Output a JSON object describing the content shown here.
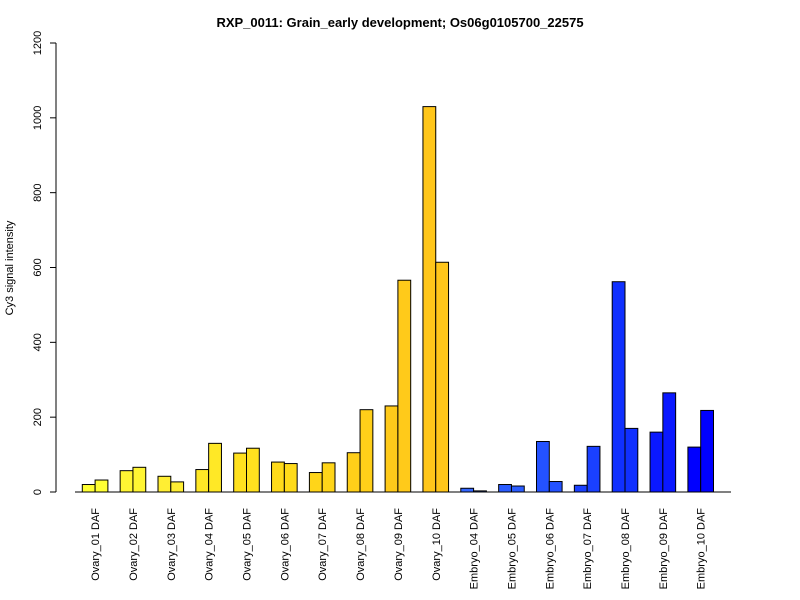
{
  "chart_data": {
    "type": "bar",
    "title": "RXP_0011: Grain_early development; Os06g0105700_22575",
    "xlabel": "",
    "ylabel": "Cy3 signal intensity",
    "ylim": [
      0,
      1200
    ],
    "yticks": [
      0,
      200,
      400,
      600,
      800,
      1000,
      1200
    ],
    "categories": [
      "Ovary_01 DAF",
      "Ovary_02 DAF",
      "Ovary_03 DAF",
      "Ovary_04 DAF",
      "Ovary_05 DAF",
      "Ovary_06 DAF",
      "Ovary_07 DAF",
      "Ovary_08 DAF",
      "Ovary_09 DAF",
      "Ovary_10 DAF",
      "Embryo_04 DAF",
      "Embryo_05 DAF",
      "Embryo_06 DAF",
      "Embryo_07 DAF",
      "Embryo_08 DAF",
      "Embryo_09 DAF",
      "Embryo_10 DAF"
    ],
    "series": [
      {
        "values": [
          20,
          57,
          42,
          60,
          104,
          80,
          52,
          105,
          230,
          1030,
          10,
          20,
          135,
          18,
          562,
          160,
          120
        ]
      },
      {
        "values": [
          32,
          66,
          27,
          130,
          117,
          76,
          78,
          220,
          566,
          614,
          3,
          16,
          28,
          122,
          170,
          265,
          218
        ]
      }
    ],
    "bar_colors": [
      "#FFFF33",
      "#FFF533",
      "#FFEE33",
      "#FFE826",
      "#FFE11F",
      "#FFDB1A",
      "#FFD519",
      "#FFCF19",
      "#FFCA1A",
      "#FFC61A",
      "#3366FF",
      "#2A5CFF",
      "#2452FF",
      "#1A40FF",
      "#1030FF",
      "#0A18FF",
      "#0000FF"
    ],
    "grid": false,
    "legend": "none"
  }
}
